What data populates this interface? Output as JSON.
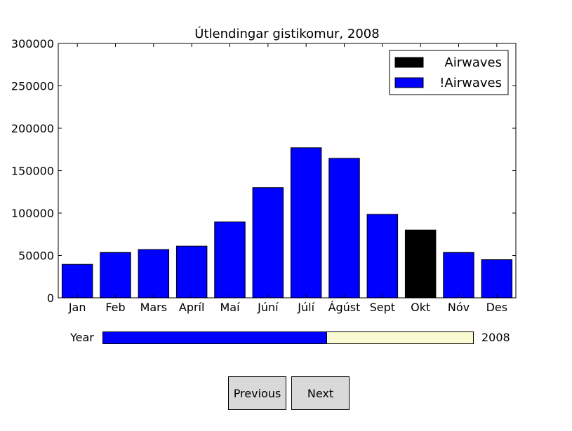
{
  "chart_data": {
    "type": "bar",
    "title": "Útlendingar gistikomur, 2008",
    "categories": [
      "Jan",
      "Feb",
      "Mars",
      "Apríl",
      "Maí",
      "Júní",
      "Júlí",
      "Ágúst",
      "Sept",
      "Okt",
      "Nóv",
      "Des"
    ],
    "series": [
      {
        "name": "Airwaves",
        "color": "#000000",
        "values": [
          0,
          0,
          0,
          0,
          0,
          0,
          0,
          0,
          0,
          80000,
          0,
          0
        ]
      },
      {
        "name": "!Airwaves",
        "color": "#0000ff",
        "values": [
          39500,
          53500,
          57000,
          61000,
          89500,
          130000,
          177000,
          164500,
          98500,
          0,
          53500,
          45000
        ]
      }
    ],
    "ylim": [
      0,
      300000
    ],
    "yticks": [
      0,
      50000,
      100000,
      150000,
      200000,
      250000,
      300000
    ],
    "legend_position": "top-right",
    "grid": false,
    "xlabel": "",
    "ylabel": ""
  },
  "slider": {
    "label": "Year",
    "value_text": "2008",
    "fill_fraction": 0.606,
    "fill_color": "#0000ff",
    "track_color": "#fafad2"
  },
  "buttons": {
    "previous": "Previous",
    "next": "Next"
  }
}
